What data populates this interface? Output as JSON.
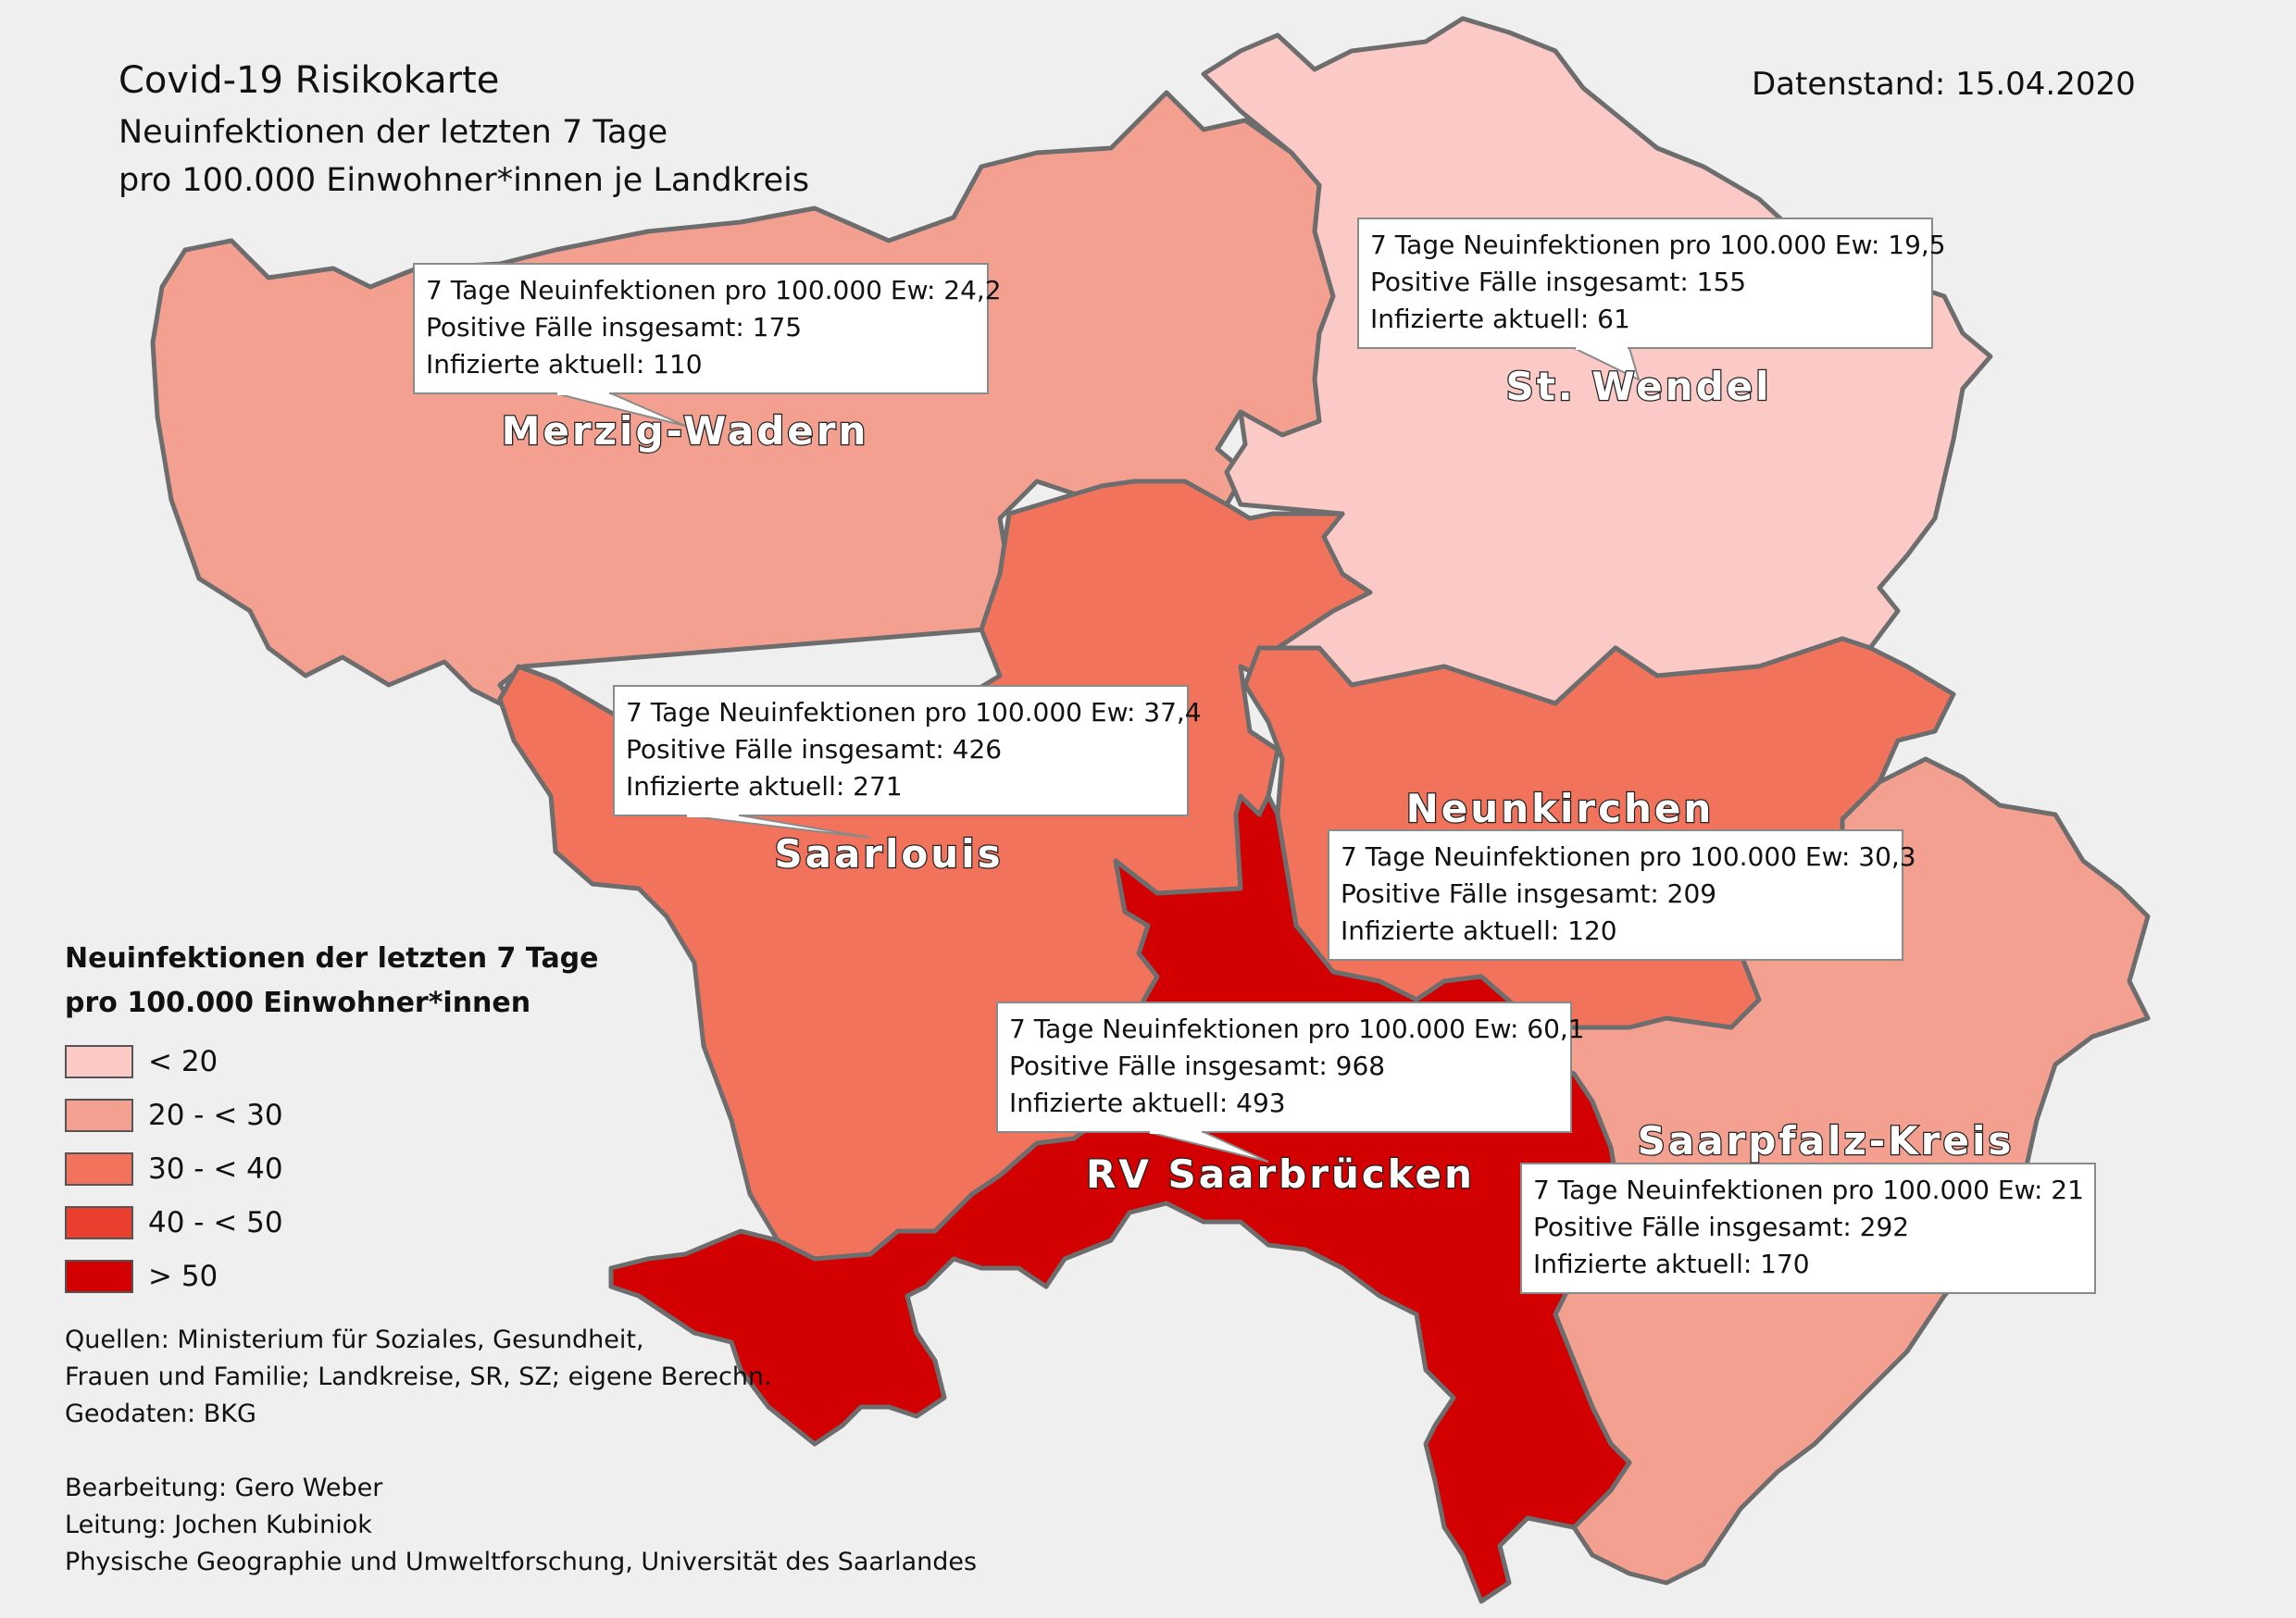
{
  "title": {
    "line1": "Covid-19 Risikokarte",
    "line2": "Neuinfektionen der letzten 7 Tage",
    "line3": "pro 100.000 Einwohner*innen je Landkreis"
  },
  "date_label": "Datenstand: 15.04.2020",
  "callout_labels": {
    "incidence": "7 Tage Neuinfektionen pro 100.000 Ew:",
    "total": "Positive Fälle insgesamt:",
    "active": "Infizierte aktuell:"
  },
  "districts": [
    {
      "id": "merzig-wadern",
      "name": "Merzig-Wadern",
      "incidence": "24,2",
      "total": "175",
      "active": "110",
      "color": "#f4a090",
      "class": "20 - < 30"
    },
    {
      "id": "st-wendel",
      "name": "St. Wendel",
      "incidence": "19,5",
      "total": "155",
      "active": "61",
      "color": "#fccac6",
      "class": "< 20"
    },
    {
      "id": "saarlouis",
      "name": "Saarlouis",
      "incidence": "37,4",
      "total": "426",
      "active": "271",
      "color": "#f2735c",
      "class": "30 - < 40"
    },
    {
      "id": "neunkirchen",
      "name": "Neunkirchen",
      "incidence": "30,3",
      "total": "209",
      "active": "120",
      "color": "#f2735c",
      "class": "30 - < 40"
    },
    {
      "id": "rv-saarbruecken",
      "name": "RV Saarbrücken",
      "incidence": "60,1",
      "total": "968",
      "active": "493",
      "color": "#d20000",
      "class": "> 50"
    },
    {
      "id": "saarpfalz-kreis",
      "name": "Saarpfalz-Kreis",
      "incidence": "21",
      "total": "292",
      "active": "170",
      "color": "#f4a090",
      "class": "20 - < 30"
    }
  ],
  "legend": {
    "title_line1": "Neuinfektionen der letzten 7 Tage",
    "title_line2": "pro 100.000 Einwohner*innen",
    "items": [
      {
        "label": "< 20",
        "color": "#fccac6"
      },
      {
        "label": "20 - < 30",
        "color": "#f4a090"
      },
      {
        "label": "30 - < 40",
        "color": "#f2735c"
      },
      {
        "label": "40 - < 50",
        "color": "#ea3f2f"
      },
      {
        "label": "> 50",
        "color": "#d20000"
      }
    ]
  },
  "credits": {
    "sources": [
      "Quellen: Ministerium für Soziales, Gesundheit,",
      "Frauen und Familie; Landkreise, SR, SZ; eigene Berechn.",
      "Geodaten: BKG"
    ],
    "authors": [
      "Bearbeitung: Gero Weber",
      "Leitung: Jochen Kubiniok",
      "Physische Geographie und Umweltforschung, Universität des Saarlandes"
    ]
  }
}
